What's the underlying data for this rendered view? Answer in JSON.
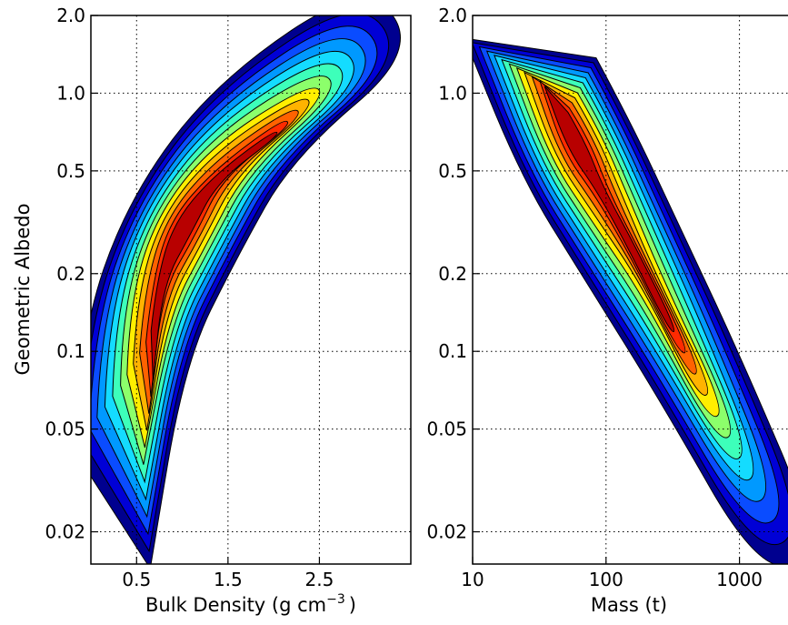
{
  "chart_data": [
    {
      "type": "heatmap",
      "subtype": "filled-contour",
      "colormap": "jet",
      "xlabel": "Bulk Density (g cm",
      "xlabel_superscript": "−3",
      "xlabel_suffix": ")",
      "ylabel": "Geometric Albedo",
      "xlim": [
        0.0,
        3.5
      ],
      "ylim": [
        0.015,
        2.0
      ],
      "yscale": "log",
      "grid": true,
      "x_ticks": [
        {
          "value": 0.5,
          "label": "0.5"
        },
        {
          "value": 1.5,
          "label": "1.5"
        },
        {
          "value": 2.5,
          "label": "2.5"
        }
      ],
      "y_ticks": [
        {
          "value": 2.0,
          "label": "2.0"
        },
        {
          "value": 1.0,
          "label": "1.0"
        },
        {
          "value": 0.5,
          "label": "0.5"
        },
        {
          "value": 0.2,
          "label": "0.2"
        },
        {
          "value": 0.1,
          "label": "0.1"
        },
        {
          "value": 0.05,
          "label": "0.05"
        },
        {
          "value": 0.02,
          "label": "0.02"
        }
      ],
      "density_peak": {
        "x": 1.0,
        "y": 0.3
      },
      "ridge": [
        [
          0.2,
          0.015
        ],
        [
          0.45,
          0.1
        ],
        [
          1.0,
          0.3
        ],
        [
          1.8,
          0.8
        ],
        [
          3.3,
          2.0
        ]
      ]
    },
    {
      "type": "heatmap",
      "subtype": "filled-contour",
      "colormap": "jet",
      "xlabel": "Mass (t)",
      "ylabel": "",
      "xlim": [
        10,
        2500
      ],
      "xscale": "log",
      "ylim": [
        0.015,
        2.0
      ],
      "yscale": "log",
      "grid": true,
      "x_ticks": [
        {
          "value": 10,
          "label": "10"
        },
        {
          "value": 100,
          "label": "100"
        },
        {
          "value": 1000,
          "label": "1000"
        }
      ],
      "y_ticks": [
        {
          "value": 2.0,
          "label": "2.0"
        },
        {
          "value": 1.0,
          "label": "1.0"
        },
        {
          "value": 0.5,
          "label": "0.5"
        },
        {
          "value": 0.2,
          "label": "0.2"
        },
        {
          "value": 0.1,
          "label": "0.1"
        },
        {
          "value": 0.05,
          "label": "0.05"
        },
        {
          "value": 0.02,
          "label": "0.02"
        }
      ],
      "density_peak": {
        "x": 60,
        "y": 0.65
      },
      "ridge": [
        [
          20,
          2.0
        ],
        [
          60,
          0.6
        ],
        [
          150,
          0.25
        ],
        [
          500,
          0.08
        ],
        [
          2500,
          0.015
        ]
      ]
    }
  ],
  "colors": {
    "contour_levels": [
      "#00008f",
      "#0000d6",
      "#0a4cff",
      "#0099ff",
      "#14dcff",
      "#3dffba",
      "#8cff6b",
      "#ffee00",
      "#ffb300",
      "#ff6200",
      "#ff2a00",
      "#b80000"
    ],
    "contour_line": "#000000",
    "grid": "#000000"
  }
}
